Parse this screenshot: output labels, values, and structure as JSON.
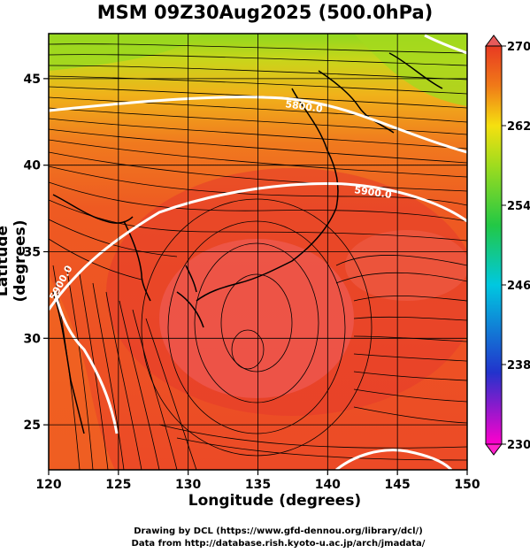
{
  "title": "MSM 09Z30Aug2025 (500.0hPa)",
  "map": {
    "xlabel": "Longitude (degrees)",
    "ylabel": "Latitude  (degrees)",
    "lon_ticks": [
      120,
      125,
      130,
      135,
      140,
      145,
      150
    ],
    "lat_ticks": [
      25,
      30,
      35,
      40,
      45
    ],
    "lon_range": [
      120,
      150
    ],
    "lat_range": [
      22.4,
      47.6
    ],
    "contour_labels": [
      "5800.0",
      "5900.0",
      "5900.0"
    ],
    "colors": {
      "warm_core": "#ee3a2a",
      "mid": "#f06a22",
      "cool": "#9fdc1e",
      "contour": "#ffffff",
      "coast": "#000000"
    }
  },
  "colorbar": {
    "labels": [
      "270",
      "262",
      "254",
      "246",
      "238",
      "230"
    ],
    "range": [
      230,
      270
    ],
    "stops": [
      "#ff00cc",
      "#2233cc",
      "#00c8e0",
      "#22c845",
      "#9fdc1e",
      "#f5e010",
      "#f07a18",
      "#e83a22"
    ]
  },
  "credits": [
    "Drawing by DCL (https://www.gfd-dennou.org/library/dcl/)",
    "Data from http://database.rish.kyoto-u.ac.jp/arch/jmadata/"
  ]
}
